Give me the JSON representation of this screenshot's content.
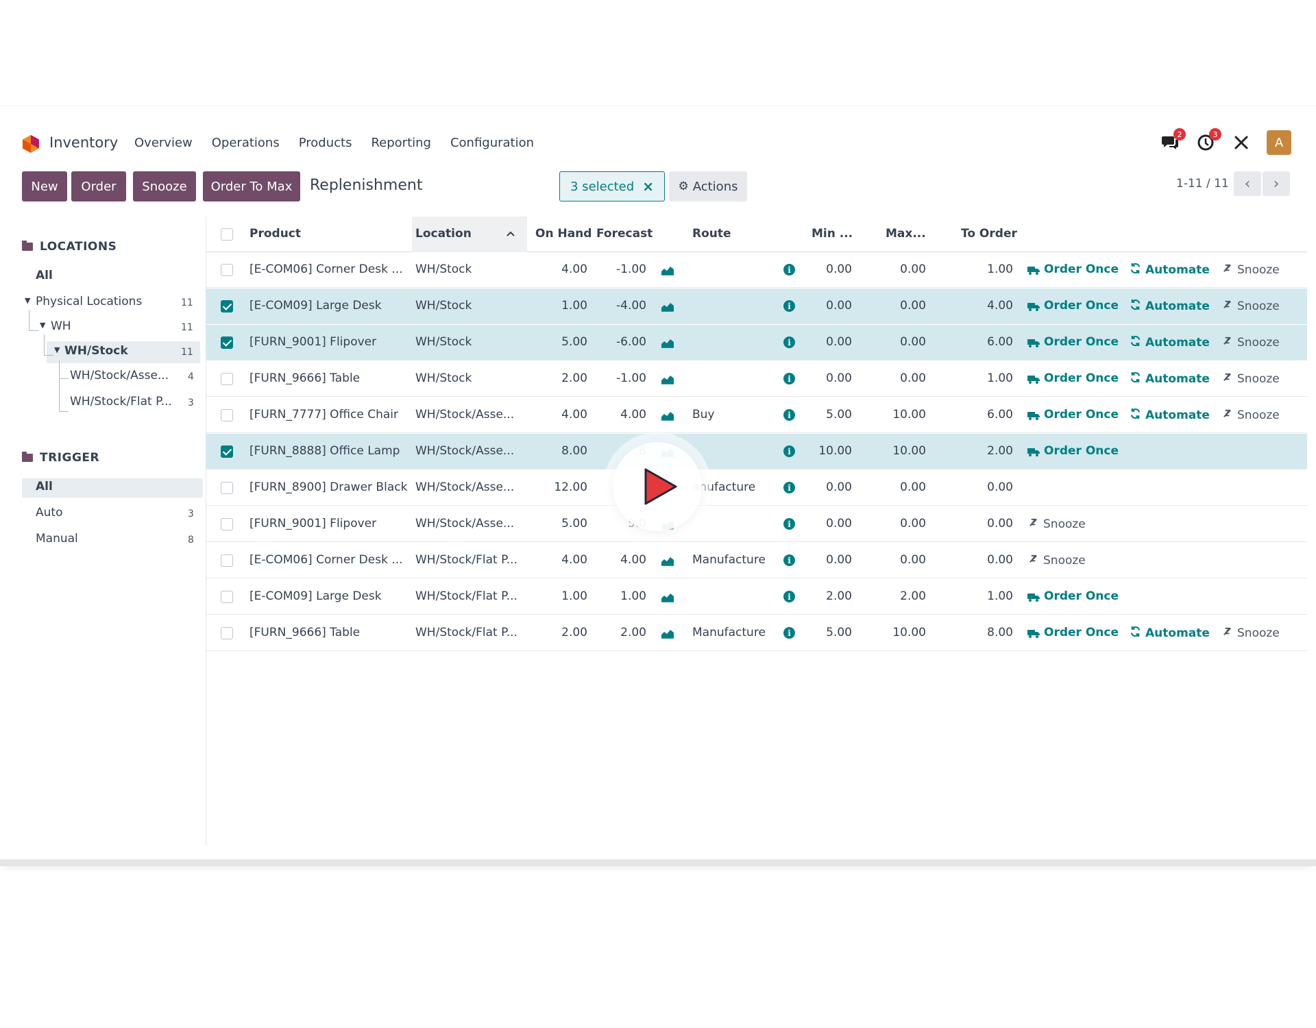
{
  "navbar": {
    "app_name": "Inventory",
    "menu": [
      "Overview",
      "Operations",
      "Products",
      "Reporting",
      "Configuration"
    ],
    "messages_count": "2",
    "activities_count": "3",
    "avatar_letter": "A",
    "brand_color": "#714b67",
    "accent_color": "#017e84"
  },
  "control": {
    "buttons": [
      "New",
      "Order",
      "Snooze",
      "Order To Max"
    ],
    "breadcrumb": "Replenishment",
    "selected_label": "3 selected",
    "selected_close": "×",
    "actions_label": "Actions",
    "pager": "1-11 / 11"
  },
  "sidepanel": {
    "locations_title": "LOCATIONS",
    "locations": [
      {
        "label": "All",
        "count": ""
      },
      {
        "label": "Physical Locations",
        "count": "11"
      },
      {
        "label": "WH",
        "count": "11"
      },
      {
        "label": "WH/Stock",
        "count": "11"
      },
      {
        "label": "WH/Stock/Asse...",
        "count": "4"
      },
      {
        "label": "WH/Stock/Flat P...",
        "count": "3"
      }
    ],
    "trigger_title": "TRIGGER",
    "triggers": [
      {
        "label": "All",
        "count": ""
      },
      {
        "label": "Auto",
        "count": "3"
      },
      {
        "label": "Manual",
        "count": "8"
      }
    ]
  },
  "table": {
    "headers": {
      "product": "Product",
      "location": "Location",
      "on_hand": "On Hand",
      "forecast": "Forecast",
      "route": "Route",
      "min": "Min ...",
      "max": "Max...",
      "to_order": "To Order"
    },
    "action_labels": {
      "order_once": "Order Once",
      "automate": "Automate",
      "snooze": "Snooze"
    },
    "rows": [
      {
        "selected": false,
        "product": "[E-COM06] Corner Desk ...",
        "location": "WH/Stock",
        "on_hand": "4.00",
        "forecast": "-1.00",
        "route": "",
        "min": "0.00",
        "max": "0.00",
        "to_order": "1.00",
        "actions": "full"
      },
      {
        "selected": true,
        "product": "[E-COM09] Large Desk",
        "location": "WH/Stock",
        "on_hand": "1.00",
        "forecast": "-4.00",
        "route": "",
        "min": "0.00",
        "max": "0.00",
        "to_order": "4.00",
        "actions": "full"
      },
      {
        "selected": true,
        "product": "[FURN_9001] Flipover",
        "location": "WH/Stock",
        "on_hand": "5.00",
        "forecast": "-6.00",
        "route": "",
        "min": "0.00",
        "max": "0.00",
        "to_order": "6.00",
        "actions": "full"
      },
      {
        "selected": false,
        "product": "[FURN_9666] Table",
        "location": "WH/Stock",
        "on_hand": "2.00",
        "forecast": "-1.00",
        "route": "",
        "min": "0.00",
        "max": "0.00",
        "to_order": "1.00",
        "actions": "full"
      },
      {
        "selected": false,
        "product": "[FURN_7777] Office Chair",
        "location": "WH/Stock/Asse...",
        "on_hand": "4.00",
        "forecast": "4.00",
        "route": "Buy",
        "min": "5.00",
        "max": "10.00",
        "to_order": "6.00",
        "actions": "full"
      },
      {
        "selected": true,
        "product": "[FURN_8888] Office Lamp",
        "location": "WH/Stock/Asse...",
        "on_hand": "8.00",
        "forecast": "8",
        "route": "",
        "min": "10.00",
        "max": "10.00",
        "to_order": "2.00",
        "actions": "order"
      },
      {
        "selected": false,
        "product": "[FURN_8900] Drawer Black",
        "location": "WH/Stock/Asse...",
        "on_hand": "12.00",
        "forecast": "",
        "route": "anufacture",
        "min": "0.00",
        "max": "0.00",
        "to_order": "0.00",
        "actions": "none"
      },
      {
        "selected": false,
        "product": "[FURN_9001] Flipover",
        "location": "WH/Stock/Asse...",
        "on_hand": "5.00",
        "forecast": "5.0",
        "route": "",
        "min": "0.00",
        "max": "0.00",
        "to_order": "0.00",
        "actions": "snooze"
      },
      {
        "selected": false,
        "product": "[E-COM06] Corner Desk ...",
        "location": "WH/Stock/Flat P...",
        "on_hand": "4.00",
        "forecast": "4.00",
        "route": "Manufacture",
        "min": "0.00",
        "max": "0.00",
        "to_order": "0.00",
        "actions": "snooze"
      },
      {
        "selected": false,
        "product": "[E-COM09] Large Desk",
        "location": "WH/Stock/Flat P...",
        "on_hand": "1.00",
        "forecast": "1.00",
        "route": "",
        "min": "2.00",
        "max": "2.00",
        "to_order": "1.00",
        "actions": "order"
      },
      {
        "selected": false,
        "product": "[FURN_9666] Table",
        "location": "WH/Stock/Flat P...",
        "on_hand": "2.00",
        "forecast": "2.00",
        "route": "Manufacture",
        "min": "5.00",
        "max": "10.00",
        "to_order": "8.00",
        "actions": "full"
      }
    ]
  }
}
